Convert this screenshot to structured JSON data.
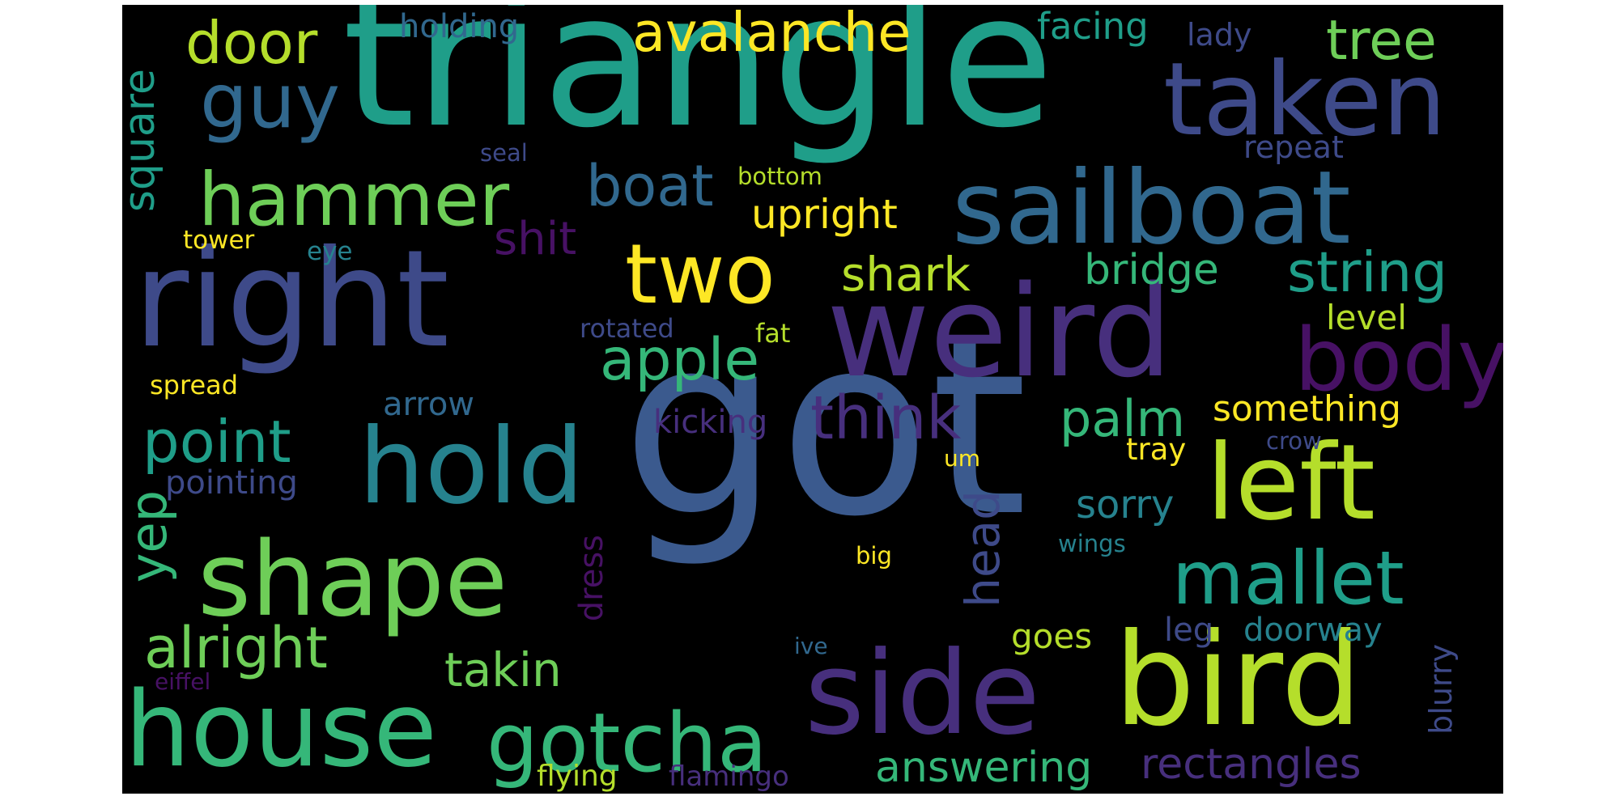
{
  "palette": {
    "background": "#000000",
    "dark_purple": "#471164",
    "indigo": "#472f7d",
    "blue": "#3e4a89",
    "steel_blue": "#31688e",
    "teal": "#26828e",
    "sea_green": "#1f9e89",
    "green": "#35b779",
    "light_green": "#6ece58",
    "lime": "#b5de2b",
    "yellow": "#fde725"
  },
  "words": [
    {
      "text": "got",
      "color": "#3b5a8e"
    },
    {
      "text": "triangle",
      "color": "#1f9e89"
    },
    {
      "text": "right",
      "color": "#3e4a89"
    },
    {
      "text": "weird",
      "color": "#472f7d"
    },
    {
      "text": "sailboat",
      "color": "#31688e"
    },
    {
      "text": "bird",
      "color": "#b5de2b"
    },
    {
      "text": "taken",
      "color": "#3e4a89"
    },
    {
      "text": "hold",
      "color": "#26828e"
    },
    {
      "text": "side",
      "color": "#472f7d"
    },
    {
      "text": "house",
      "color": "#35b779"
    },
    {
      "text": "shape",
      "color": "#6ece58"
    },
    {
      "text": "left",
      "color": "#b5de2b"
    },
    {
      "text": "two",
      "color": "#fde725"
    },
    {
      "text": "gotcha",
      "color": "#35b779"
    },
    {
      "text": "body",
      "color": "#471164"
    },
    {
      "text": "mallet",
      "color": "#1f9e89"
    },
    {
      "text": "hammer",
      "color": "#6ece58"
    },
    {
      "text": "guy",
      "color": "#31688e"
    },
    {
      "text": "door",
      "color": "#b5de2b"
    },
    {
      "text": "avalanche",
      "color": "#fde725"
    },
    {
      "text": "tree",
      "color": "#6ece58"
    },
    {
      "text": "string",
      "color": "#1f9e89"
    },
    {
      "text": "apple",
      "color": "#35b779"
    },
    {
      "text": "point",
      "color": "#1f9e89"
    },
    {
      "text": "alright",
      "color": "#6ece58"
    },
    {
      "text": "think",
      "color": "#472f7d"
    },
    {
      "text": "boat",
      "color": "#31688e"
    },
    {
      "text": "palm",
      "color": "#35b779"
    },
    {
      "text": "takin",
      "color": "#6ece58"
    },
    {
      "text": "shark",
      "color": "#b5de2b"
    },
    {
      "text": "yep",
      "color": "#35b779"
    },
    {
      "text": "bridge",
      "color": "#35b779"
    },
    {
      "text": "shit",
      "color": "#471164"
    },
    {
      "text": "upright",
      "color": "#fde725"
    },
    {
      "text": "head",
      "color": "#3e4a89"
    },
    {
      "text": "answering",
      "color": "#35b779"
    },
    {
      "text": "rectangles",
      "color": "#472f7d"
    },
    {
      "text": "square",
      "color": "#1f9e89"
    },
    {
      "text": "something",
      "color": "#fde725"
    },
    {
      "text": "sorry",
      "color": "#26828e"
    },
    {
      "text": "level",
      "color": "#b5de2b"
    },
    {
      "text": "facing",
      "color": "#1f9e89"
    },
    {
      "text": "holding",
      "color": "#31688e"
    },
    {
      "text": "pointing",
      "color": "#3e4a89"
    },
    {
      "text": "kicking",
      "color": "#472f7d"
    },
    {
      "text": "arrow",
      "color": "#31688e"
    },
    {
      "text": "dress",
      "color": "#471164"
    },
    {
      "text": "goes",
      "color": "#b5de2b"
    },
    {
      "text": "leg",
      "color": "#3e4a89"
    },
    {
      "text": "doorway",
      "color": "#26828e"
    },
    {
      "text": "blurry",
      "color": "#3e4a89"
    },
    {
      "text": "flying",
      "color": "#b5de2b"
    },
    {
      "text": "flamingo",
      "color": "#472f7d"
    },
    {
      "text": "repeat",
      "color": "#3e4a89"
    },
    {
      "text": "lady",
      "color": "#3e4a89"
    },
    {
      "text": "tray",
      "color": "#fde725"
    },
    {
      "text": "rotated",
      "color": "#3e4a89"
    },
    {
      "text": "fat",
      "color": "#b5de2b"
    },
    {
      "text": "spread",
      "color": "#fde725"
    },
    {
      "text": "eye",
      "color": "#26828e"
    },
    {
      "text": "tower",
      "color": "#fde725"
    },
    {
      "text": "bottom",
      "color": "#b5de2b"
    },
    {
      "text": "seal",
      "color": "#3e4a89"
    },
    {
      "text": "crow",
      "color": "#3e4a89"
    },
    {
      "text": "um",
      "color": "#fde725"
    },
    {
      "text": "wings",
      "color": "#26828e"
    },
    {
      "text": "big",
      "color": "#fde725"
    },
    {
      "text": "ive",
      "color": "#31688e"
    },
    {
      "text": "eiffel",
      "color": "#471164"
    }
  ]
}
